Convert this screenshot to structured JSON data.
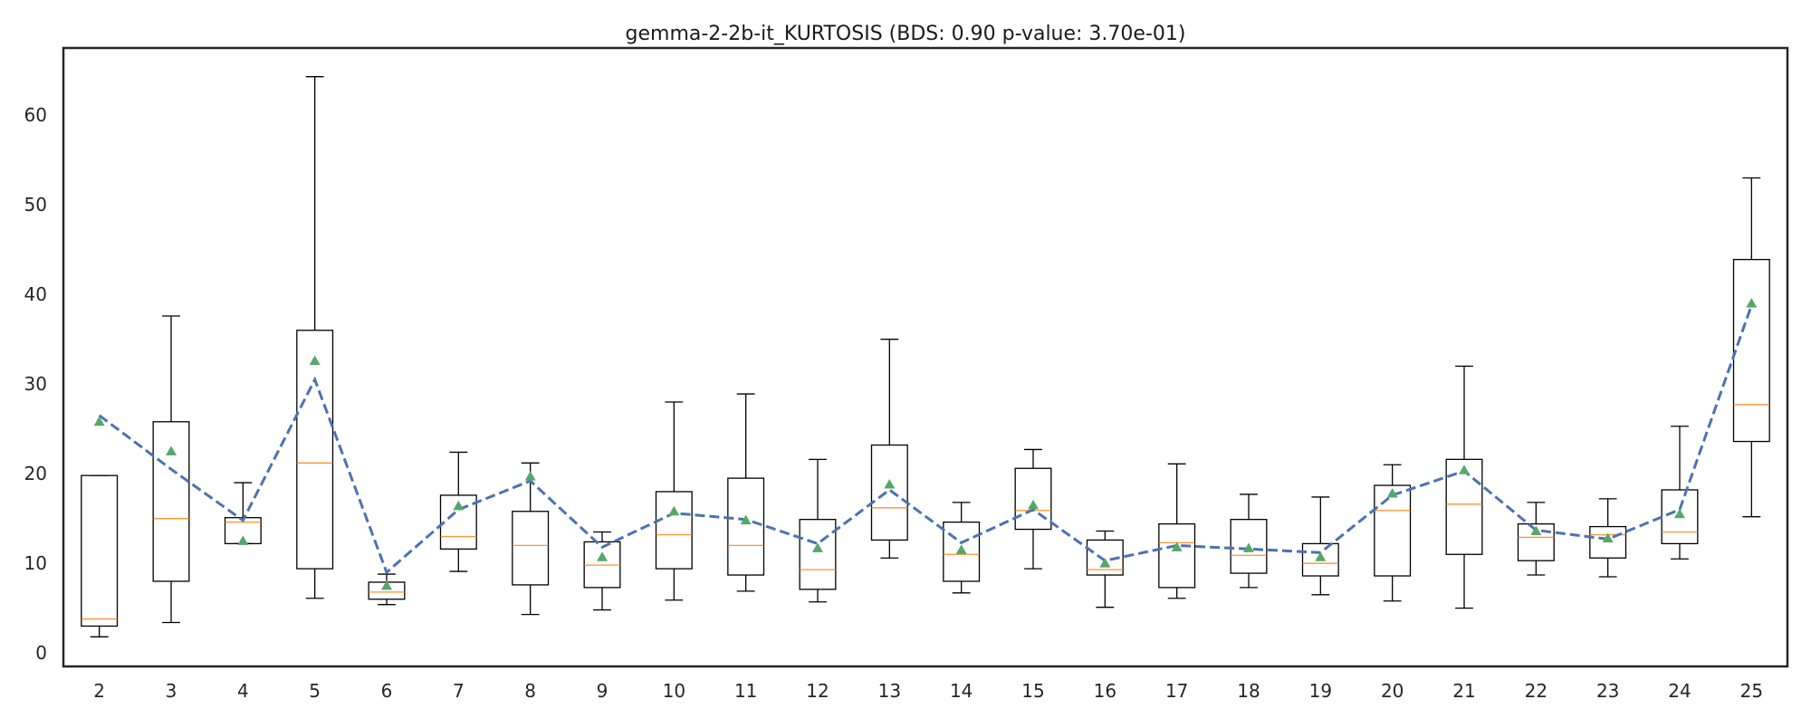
{
  "chart_data": {
    "type": "box",
    "title": "gemma-2-2b-it_KURTOSIS (BDS: 0.90 p-value: 3.70e-01)",
    "xlabel": "",
    "ylabel": "",
    "ylim": [
      -1.5,
      67.5
    ],
    "yticks": [
      0,
      10,
      20,
      30,
      40,
      50,
      60
    ],
    "grid": false,
    "categories": [
      "2",
      "3",
      "4",
      "5",
      "6",
      "7",
      "8",
      "9",
      "10",
      "11",
      "12",
      "13",
      "14",
      "15",
      "16",
      "17",
      "18",
      "19",
      "20",
      "21",
      "22",
      "23",
      "24",
      "25"
    ],
    "boxes": [
      {
        "label": "2",
        "whislo": 1.8,
        "q1": 3.0,
        "med": 3.8,
        "q3": 19.8,
        "whishi": 19.8,
        "mean": 25.8
      },
      {
        "label": "3",
        "whislo": 3.4,
        "q1": 8.0,
        "med": 15.0,
        "q3": 25.8,
        "whishi": 37.6,
        "mean": 22.5
      },
      {
        "label": "4",
        "whislo": 12.2,
        "q1": 12.2,
        "med": 14.6,
        "q3": 15.1,
        "whishi": 19.0,
        "mean": 12.5
      },
      {
        "label": "5",
        "whislo": 6.1,
        "q1": 9.4,
        "med": 21.2,
        "q3": 36.0,
        "whishi": 64.3,
        "mean": 32.6
      },
      {
        "label": "6",
        "whislo": 5.4,
        "q1": 6.0,
        "med": 6.8,
        "q3": 7.9,
        "whishi": 8.8,
        "mean": 7.5
      },
      {
        "label": "7",
        "whislo": 9.1,
        "q1": 11.6,
        "med": 13.0,
        "q3": 17.6,
        "whishi": 22.4,
        "mean": 16.4
      },
      {
        "label": "8",
        "whislo": 4.3,
        "q1": 7.6,
        "med": 12.0,
        "q3": 15.8,
        "whishi": 21.2,
        "mean": 19.7
      },
      {
        "label": "9",
        "whislo": 4.8,
        "q1": 7.3,
        "med": 9.8,
        "q3": 12.4,
        "whishi": 13.5,
        "mean": 10.7
      },
      {
        "label": "10",
        "whislo": 5.9,
        "q1": 9.4,
        "med": 13.2,
        "q3": 18.0,
        "whishi": 28.0,
        "mean": 15.8
      },
      {
        "label": "11",
        "whislo": 6.9,
        "q1": 8.7,
        "med": 12.0,
        "q3": 19.5,
        "whishi": 28.9,
        "mean": 14.8
      },
      {
        "label": "12",
        "whislo": 5.7,
        "q1": 7.1,
        "med": 9.3,
        "q3": 14.9,
        "whishi": 21.6,
        "mean": 11.7
      },
      {
        "label": "13",
        "whislo": 10.6,
        "q1": 12.6,
        "med": 16.2,
        "q3": 23.2,
        "whishi": 35.0,
        "mean": 18.8
      },
      {
        "label": "14",
        "whislo": 6.7,
        "q1": 8.0,
        "med": 11.0,
        "q3": 14.6,
        "whishi": 16.8,
        "mean": 11.5
      },
      {
        "label": "15",
        "whislo": 9.4,
        "q1": 13.8,
        "med": 15.9,
        "q3": 20.6,
        "whishi": 22.7,
        "mean": 16.5
      },
      {
        "label": "16",
        "whislo": 5.1,
        "q1": 8.7,
        "med": 9.3,
        "q3": 12.6,
        "whishi": 13.6,
        "mean": 10.0
      },
      {
        "label": "17",
        "whislo": 6.1,
        "q1": 7.3,
        "med": 12.3,
        "q3": 14.4,
        "whishi": 21.1,
        "mean": 11.8
      },
      {
        "label": "18",
        "whislo": 7.3,
        "q1": 8.9,
        "med": 10.9,
        "q3": 14.9,
        "whishi": 17.7,
        "mean": 11.7
      },
      {
        "label": "19",
        "whislo": 6.5,
        "q1": 8.6,
        "med": 10.0,
        "q3": 12.2,
        "whishi": 17.4,
        "mean": 10.7
      },
      {
        "label": "20",
        "whislo": 5.8,
        "q1": 8.6,
        "med": 15.9,
        "q3": 18.7,
        "whishi": 21.0,
        "mean": 17.8
      },
      {
        "label": "21",
        "whislo": 5.0,
        "q1": 11.0,
        "med": 16.6,
        "q3": 21.6,
        "whishi": 32.0,
        "mean": 20.4
      },
      {
        "label": "22",
        "whislo": 8.7,
        "q1": 10.3,
        "med": 12.9,
        "q3": 14.4,
        "whishi": 16.8,
        "mean": 13.6
      },
      {
        "label": "23",
        "whislo": 8.5,
        "q1": 10.6,
        "med": 13.2,
        "q3": 14.1,
        "whishi": 17.2,
        "mean": 12.8
      },
      {
        "label": "24",
        "whislo": 10.5,
        "q1": 12.2,
        "med": 13.5,
        "q3": 18.2,
        "whishi": 25.3,
        "mean": 15.5
      },
      {
        "label": "25",
        "whislo": 15.2,
        "q1": 23.6,
        "med": 27.7,
        "q3": 43.9,
        "whishi": 53.0,
        "mean": 39.0
      }
    ],
    "trend": {
      "style": "dashed",
      "values": [
        26.5,
        20.5,
        14.8,
        30.5,
        9.0,
        16.0,
        19.2,
        11.8,
        15.6,
        14.9,
        12.2,
        18.2,
        12.3,
        16.0,
        10.3,
        12.0,
        11.6,
        11.2,
        17.6,
        20.3,
        13.7,
        12.7,
        16.0,
        38.8
      ]
    },
    "colors": {
      "box": "#000000",
      "median": "#ff7f0e",
      "mean_marker": "#55a868",
      "trend": "#4c72b0"
    }
  }
}
